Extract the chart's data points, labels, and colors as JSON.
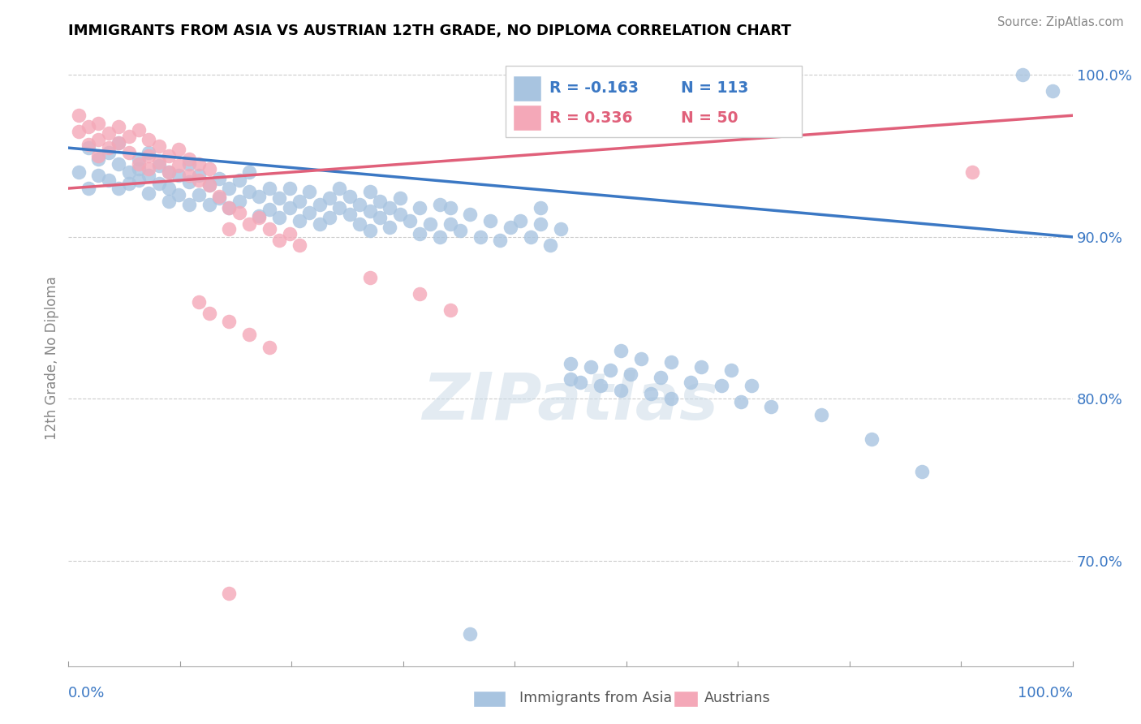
{
  "title": "IMMIGRANTS FROM ASIA VS AUSTRIAN 12TH GRADE, NO DIPLOMA CORRELATION CHART",
  "source": "Source: ZipAtlas.com",
  "ylabel": "12th Grade, No Diploma",
  "legend_label_blue": "Immigrants from Asia",
  "legend_label_pink": "Austrians",
  "r_blue": "-0.163",
  "n_blue": "113",
  "r_pink": "0.336",
  "n_pink": "50",
  "xlim": [
    0.0,
    1.0
  ],
  "ylim": [
    0.635,
    1.015
  ],
  "yticks": [
    0.7,
    0.8,
    0.9,
    1.0
  ],
  "ytick_labels": [
    "70.0%",
    "80.0%",
    "90.0%",
    "100.0%"
  ],
  "color_blue": "#a8c4e0",
  "color_pink": "#f4a8b8",
  "line_blue": "#3b78c4",
  "line_pink": "#e0607a",
  "tick_color": "#3b78c4",
  "watermark_color": "#c8d8e8",
  "blue_trend_start": 0.955,
  "blue_trend_end": 0.9,
  "pink_trend_x0": 0.0,
  "pink_trend_y0": 0.93,
  "pink_trend_x1": 1.0,
  "pink_trend_y1": 0.975,
  "blue_points": [
    [
      0.01,
      0.94
    ],
    [
      0.02,
      0.955
    ],
    [
      0.02,
      0.93
    ],
    [
      0.03,
      0.948
    ],
    [
      0.03,
      0.938
    ],
    [
      0.04,
      0.952
    ],
    [
      0.04,
      0.935
    ],
    [
      0.05,
      0.945
    ],
    [
      0.05,
      0.93
    ],
    [
      0.05,
      0.958
    ],
    [
      0.06,
      0.94
    ],
    [
      0.06,
      0.933
    ],
    [
      0.07,
      0.948
    ],
    [
      0.07,
      0.935
    ],
    [
      0.07,
      0.942
    ],
    [
      0.08,
      0.938
    ],
    [
      0.08,
      0.952
    ],
    [
      0.08,
      0.927
    ],
    [
      0.09,
      0.944
    ],
    [
      0.09,
      0.933
    ],
    [
      0.1,
      0.94
    ],
    [
      0.1,
      0.93
    ],
    [
      0.1,
      0.922
    ],
    [
      0.11,
      0.938
    ],
    [
      0.11,
      0.926
    ],
    [
      0.12,
      0.934
    ],
    [
      0.12,
      0.945
    ],
    [
      0.12,
      0.92
    ],
    [
      0.13,
      0.938
    ],
    [
      0.13,
      0.926
    ],
    [
      0.14,
      0.932
    ],
    [
      0.14,
      0.92
    ],
    [
      0.15,
      0.936
    ],
    [
      0.15,
      0.924
    ],
    [
      0.16,
      0.93
    ],
    [
      0.16,
      0.918
    ],
    [
      0.17,
      0.935
    ],
    [
      0.17,
      0.922
    ],
    [
      0.18,
      0.928
    ],
    [
      0.18,
      0.94
    ],
    [
      0.19,
      0.925
    ],
    [
      0.19,
      0.913
    ],
    [
      0.2,
      0.93
    ],
    [
      0.2,
      0.917
    ],
    [
      0.21,
      0.924
    ],
    [
      0.21,
      0.912
    ],
    [
      0.22,
      0.918
    ],
    [
      0.22,
      0.93
    ],
    [
      0.23,
      0.922
    ],
    [
      0.23,
      0.91
    ],
    [
      0.24,
      0.928
    ],
    [
      0.24,
      0.915
    ],
    [
      0.25,
      0.92
    ],
    [
      0.25,
      0.908
    ],
    [
      0.26,
      0.924
    ],
    [
      0.26,
      0.912
    ],
    [
      0.27,
      0.918
    ],
    [
      0.27,
      0.93
    ],
    [
      0.28,
      0.914
    ],
    [
      0.28,
      0.925
    ],
    [
      0.29,
      0.92
    ],
    [
      0.29,
      0.908
    ],
    [
      0.3,
      0.916
    ],
    [
      0.3,
      0.928
    ],
    [
      0.3,
      0.904
    ],
    [
      0.31,
      0.912
    ],
    [
      0.31,
      0.922
    ],
    [
      0.32,
      0.918
    ],
    [
      0.32,
      0.906
    ],
    [
      0.33,
      0.914
    ],
    [
      0.33,
      0.924
    ],
    [
      0.34,
      0.91
    ],
    [
      0.35,
      0.902
    ],
    [
      0.35,
      0.918
    ],
    [
      0.36,
      0.908
    ],
    [
      0.37,
      0.92
    ],
    [
      0.37,
      0.9
    ],
    [
      0.38,
      0.908
    ],
    [
      0.38,
      0.918
    ],
    [
      0.39,
      0.904
    ],
    [
      0.4,
      0.914
    ],
    [
      0.41,
      0.9
    ],
    [
      0.42,
      0.91
    ],
    [
      0.43,
      0.898
    ],
    [
      0.44,
      0.906
    ],
    [
      0.45,
      0.91
    ],
    [
      0.46,
      0.9
    ],
    [
      0.47,
      0.908
    ],
    [
      0.47,
      0.918
    ],
    [
      0.48,
      0.895
    ],
    [
      0.49,
      0.905
    ],
    [
      0.5,
      0.812
    ],
    [
      0.5,
      0.822
    ],
    [
      0.51,
      0.81
    ],
    [
      0.52,
      0.82
    ],
    [
      0.53,
      0.808
    ],
    [
      0.54,
      0.818
    ],
    [
      0.55,
      0.83
    ],
    [
      0.55,
      0.805
    ],
    [
      0.56,
      0.815
    ],
    [
      0.57,
      0.825
    ],
    [
      0.58,
      0.803
    ],
    [
      0.59,
      0.813
    ],
    [
      0.6,
      0.823
    ],
    [
      0.6,
      0.8
    ],
    [
      0.62,
      0.81
    ],
    [
      0.63,
      0.82
    ],
    [
      0.65,
      0.808
    ],
    [
      0.66,
      0.818
    ],
    [
      0.67,
      0.798
    ],
    [
      0.68,
      0.808
    ],
    [
      0.7,
      0.795
    ],
    [
      0.75,
      0.79
    ],
    [
      0.8,
      0.775
    ],
    [
      0.85,
      0.755
    ],
    [
      0.95,
      1.0
    ],
    [
      0.98,
      0.99
    ],
    [
      0.4,
      0.655
    ]
  ],
  "pink_points": [
    [
      0.01,
      0.965
    ],
    [
      0.01,
      0.975
    ],
    [
      0.02,
      0.968
    ],
    [
      0.02,
      0.957
    ],
    [
      0.03,
      0.97
    ],
    [
      0.03,
      0.96
    ],
    [
      0.03,
      0.95
    ],
    [
      0.04,
      0.964
    ],
    [
      0.04,
      0.955
    ],
    [
      0.05,
      0.968
    ],
    [
      0.05,
      0.958
    ],
    [
      0.06,
      0.962
    ],
    [
      0.06,
      0.952
    ],
    [
      0.07,
      0.966
    ],
    [
      0.07,
      0.945
    ],
    [
      0.08,
      0.96
    ],
    [
      0.08,
      0.95
    ],
    [
      0.08,
      0.942
    ],
    [
      0.09,
      0.956
    ],
    [
      0.09,
      0.946
    ],
    [
      0.1,
      0.95
    ],
    [
      0.1,
      0.94
    ],
    [
      0.11,
      0.954
    ],
    [
      0.11,
      0.944
    ],
    [
      0.12,
      0.948
    ],
    [
      0.12,
      0.938
    ],
    [
      0.13,
      0.945
    ],
    [
      0.13,
      0.935
    ],
    [
      0.14,
      0.942
    ],
    [
      0.14,
      0.932
    ],
    [
      0.15,
      0.925
    ],
    [
      0.16,
      0.918
    ],
    [
      0.16,
      0.905
    ],
    [
      0.17,
      0.915
    ],
    [
      0.18,
      0.908
    ],
    [
      0.19,
      0.912
    ],
    [
      0.2,
      0.905
    ],
    [
      0.21,
      0.898
    ],
    [
      0.22,
      0.902
    ],
    [
      0.23,
      0.895
    ],
    [
      0.13,
      0.86
    ],
    [
      0.14,
      0.853
    ],
    [
      0.16,
      0.848
    ],
    [
      0.18,
      0.84
    ],
    [
      0.2,
      0.832
    ],
    [
      0.16,
      0.68
    ],
    [
      0.3,
      0.875
    ],
    [
      0.35,
      0.865
    ],
    [
      0.38,
      0.855
    ],
    [
      0.9,
      0.94
    ]
  ]
}
